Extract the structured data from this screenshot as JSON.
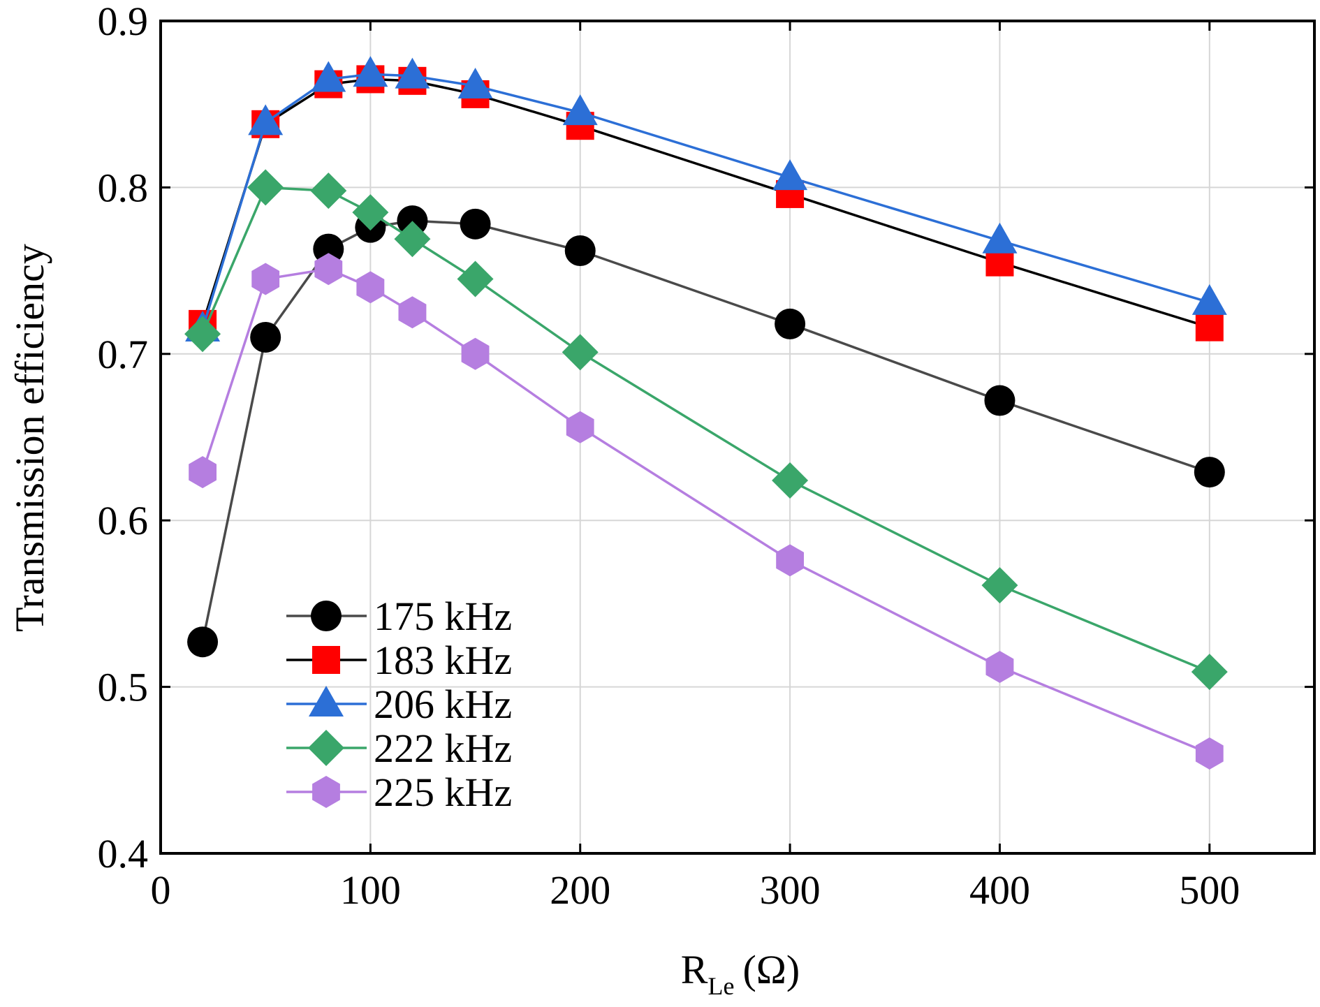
{
  "chart_data": {
    "type": "line",
    "title": "",
    "xlabel": "R",
    "xlabel_subscript": "Le",
    "xlabel_unit": "(Ω)",
    "ylabel": "Transmission efficiency",
    "xlim": [
      0,
      550
    ],
    "ylim": [
      0.4,
      0.9
    ],
    "x_ticks": [
      0,
      100,
      200,
      300,
      400,
      500
    ],
    "x_tick_labels": [
      "0",
      "100",
      "200",
      "300",
      "400",
      "500"
    ],
    "y_ticks": [
      0.4,
      0.5,
      0.6,
      0.7,
      0.8,
      0.9
    ],
    "y_tick_labels": [
      "0.4",
      "0.5",
      "0.6",
      "0.7",
      "0.8",
      "0.9"
    ],
    "grid": true,
    "legend_position": "lower-left",
    "x": [
      20,
      50,
      80,
      100,
      120,
      150,
      200,
      300,
      400,
      500
    ],
    "series": [
      {
        "name": "175 kHz",
        "line_color": "#4a4a4a",
        "marker_color": "#000000",
        "marker": "circle",
        "values": [
          0.527,
          0.71,
          0.763,
          0.776,
          0.78,
          0.778,
          0.762,
          0.718,
          0.672,
          0.629
        ]
      },
      {
        "name": "183 kHz",
        "line_color": "#000000",
        "marker_color": "#ff0000",
        "marker": "square",
        "values": [
          0.718,
          0.838,
          0.862,
          0.865,
          0.864,
          0.856,
          0.837,
          0.796,
          0.755,
          0.716
        ]
      },
      {
        "name": "206 kHz",
        "line_color": "#2c6fd6",
        "marker_color": "#2c6fd6",
        "marker": "triangle",
        "values": [
          0.715,
          0.839,
          0.865,
          0.868,
          0.867,
          0.861,
          0.845,
          0.806,
          0.768,
          0.731
        ]
      },
      {
        "name": "222 kHz",
        "line_color": "#3aa66a",
        "marker_color": "#3aa66a",
        "marker": "diamond",
        "values": [
          0.712,
          0.8,
          0.798,
          0.785,
          0.769,
          0.745,
          0.701,
          0.624,
          0.561,
          0.509
        ]
      },
      {
        "name": "225 kHz",
        "line_color": "#b57ee0",
        "marker_color": "#b57ee0",
        "marker": "hexagon",
        "values": [
          0.629,
          0.745,
          0.751,
          0.74,
          0.725,
          0.7,
          0.656,
          0.576,
          0.512,
          0.46
        ]
      }
    ]
  }
}
